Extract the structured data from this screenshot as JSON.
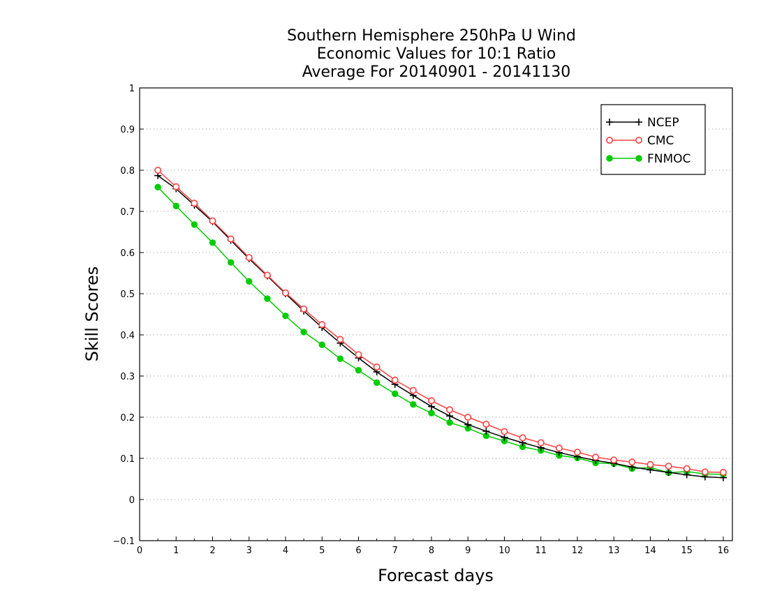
{
  "chart_data": {
    "type": "line",
    "title": [
      "Southern Hemisphere 250hPa U Wind",
      "Economic Values for 10:1 Ratio",
      "Average For 20140901 - 20141130"
    ],
    "xlabel": "Forecast days",
    "ylabel": "Skill Scores",
    "xlim": [
      0,
      16.25
    ],
    "ylim": [
      -0.1,
      1
    ],
    "xticks": [
      "0",
      "1",
      "2",
      "3",
      "4",
      "5",
      "6",
      "7",
      "8",
      "9",
      "10",
      "11",
      "12",
      "13",
      "14",
      "15",
      "16"
    ],
    "yticks": [
      "−0.1",
      "0",
      "0.1",
      "0.2",
      "0.3",
      "0.4",
      "0.5",
      "0.6",
      "0.7",
      "0.8",
      "0.9",
      "1"
    ],
    "grid": true,
    "legend_position": "top-right",
    "x": [
      0.5,
      1,
      1.5,
      2,
      2.5,
      3,
      3.5,
      4,
      4.5,
      5,
      5.5,
      6,
      6.5,
      7,
      7.5,
      8,
      8.5,
      9,
      9.5,
      10,
      10.5,
      11,
      11.5,
      12,
      12.5,
      13,
      13.5,
      14,
      14.5,
      15,
      15.5,
      16
    ],
    "series": [
      {
        "name": "NCEP",
        "color": "#000000",
        "marker": "plus",
        "values": [
          0.787,
          0.755,
          0.715,
          0.675,
          0.63,
          0.585,
          0.543,
          0.5,
          0.458,
          0.418,
          0.38,
          0.344,
          0.31,
          0.28,
          0.253,
          0.226,
          0.203,
          0.182,
          0.166,
          0.151,
          0.138,
          0.126,
          0.114,
          0.104,
          0.095,
          0.088,
          0.079,
          0.072,
          0.066,
          0.06,
          0.055,
          0.053
        ]
      },
      {
        "name": "CMC",
        "color": "#ff4040",
        "marker": "open-circle",
        "values": [
          0.8,
          0.76,
          0.72,
          0.677,
          0.633,
          0.588,
          0.545,
          0.502,
          0.463,
          0.425,
          0.389,
          0.352,
          0.322,
          0.29,
          0.265,
          0.24,
          0.218,
          0.2,
          0.183,
          0.165,
          0.15,
          0.138,
          0.125,
          0.115,
          0.103,
          0.096,
          0.091,
          0.085,
          0.081,
          0.075,
          0.067,
          0.066
        ]
      },
      {
        "name": "FNMOC",
        "color": "#00cc00",
        "marker": "filled-circle",
        "values": [
          0.759,
          0.713,
          0.668,
          0.624,
          0.576,
          0.53,
          0.488,
          0.446,
          0.407,
          0.376,
          0.342,
          0.314,
          0.284,
          0.257,
          0.231,
          0.21,
          0.187,
          0.173,
          0.155,
          0.142,
          0.128,
          0.119,
          0.107,
          0.101,
          0.089,
          0.087,
          0.075,
          0.078,
          0.065,
          0.068,
          0.062,
          0.061
        ]
      }
    ]
  }
}
